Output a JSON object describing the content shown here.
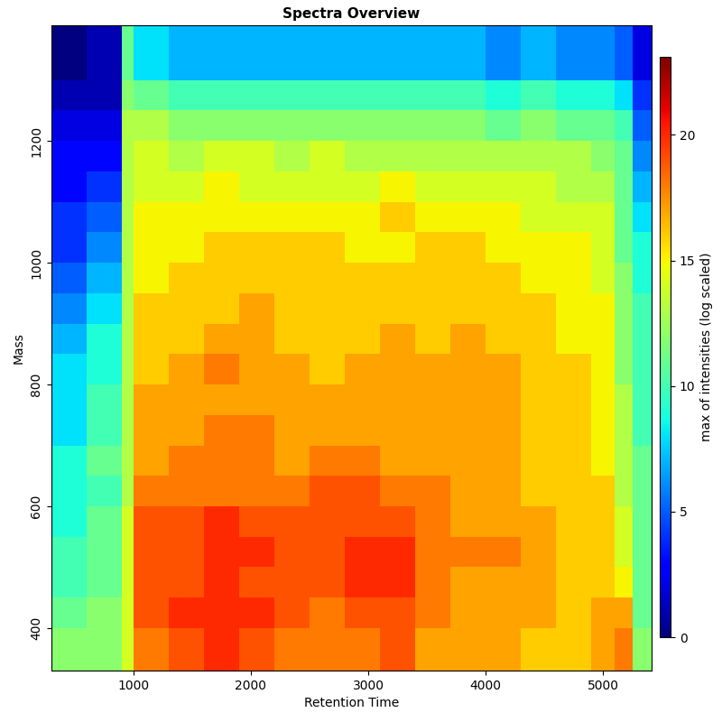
{
  "chart_data": {
    "type": "heatmap",
    "title": "Spectra Overview",
    "x_label": "Retention Time",
    "y_label": "Mass",
    "xlim": [
      300,
      5410
    ],
    "ylim": [
      330,
      1390
    ],
    "xticks": [
      1000,
      2000,
      3000,
      4000,
      5000
    ],
    "yticks": [
      400,
      600,
      800,
      1000,
      1200
    ],
    "color": "jet",
    "colorbar_label": "max of intensities (log scaled)",
    "colorbar_range": [
      0,
      23.1
    ],
    "colorbar_ticks": [
      0,
      5,
      10,
      15,
      20
    ],
    "x_edges": [
      300,
      600,
      900,
      1000,
      1300,
      1600,
      1900,
      2200,
      2500,
      2800,
      3100,
      3400,
      3700,
      4000,
      4300,
      4600,
      4900,
      5100,
      5250,
      5410
    ],
    "y_edges": [
      330,
      400,
      450,
      500,
      550,
      600,
      650,
      700,
      750,
      800,
      850,
      900,
      950,
      1000,
      1050,
      1100,
      1150,
      1200,
      1250,
      1300,
      1390
    ],
    "cells": [
      [
        12,
        12,
        14,
        18,
        19,
        20,
        19,
        18,
        18,
        18,
        19,
        17,
        17,
        17,
        16,
        16,
        17,
        18,
        12
      ],
      [
        11,
        12,
        14,
        19,
        20,
        20,
        20,
        19,
        18,
        19,
        19,
        18,
        17,
        17,
        17,
        16,
        17,
        17,
        11
      ],
      [
        10,
        11,
        14,
        19,
        19,
        20,
        19,
        19,
        19,
        20,
        20,
        18,
        17,
        17,
        17,
        16,
        16,
        15,
        11
      ],
      [
        10,
        11,
        14,
        19,
        19,
        20,
        20,
        19,
        19,
        20,
        20,
        18,
        18,
        18,
        17,
        16,
        16,
        14,
        11
      ],
      [
        9,
        11,
        14,
        19,
        19,
        20,
        19,
        19,
        19,
        19,
        19,
        18,
        17,
        17,
        17,
        16,
        16,
        14,
        11
      ],
      [
        9,
        10,
        13,
        18,
        18,
        18,
        18,
        18,
        19,
        19,
        18,
        18,
        17,
        17,
        16,
        16,
        16,
        13,
        11
      ],
      [
        9,
        11,
        13,
        17,
        18,
        18,
        18,
        17,
        18,
        18,
        17,
        17,
        17,
        17,
        16,
        16,
        15,
        13,
        11
      ],
      [
        8,
        10,
        13,
        17,
        17,
        18,
        18,
        17,
        17,
        17,
        17,
        17,
        17,
        17,
        16,
        16,
        15,
        13,
        10
      ],
      [
        8,
        10,
        13,
        17,
        17,
        17,
        17,
        17,
        17,
        17,
        17,
        17,
        17,
        17,
        16,
        16,
        15,
        13,
        10
      ],
      [
        8,
        9,
        13,
        16,
        17,
        18,
        17,
        17,
        16,
        17,
        17,
        17,
        17,
        17,
        16,
        16,
        15,
        12,
        10
      ],
      [
        7,
        9,
        13,
        16,
        16,
        17,
        17,
        16,
        16,
        16,
        17,
        16,
        17,
        16,
        16,
        15,
        15,
        12,
        10
      ],
      [
        6,
        8,
        13,
        16,
        16,
        16,
        17,
        16,
        16,
        16,
        16,
        16,
        16,
        16,
        16,
        15,
        15,
        12,
        10
      ],
      [
        5,
        7,
        13,
        15,
        16,
        16,
        16,
        16,
        16,
        16,
        16,
        16,
        16,
        16,
        15,
        15,
        14,
        12,
        9
      ],
      [
        4,
        6,
        13,
        15,
        15,
        16,
        16,
        16,
        16,
        15,
        15,
        16,
        16,
        15,
        15,
        15,
        14,
        11,
        9
      ],
      [
        4,
        5,
        13,
        15,
        15,
        15,
        15,
        15,
        15,
        15,
        16,
        15,
        15,
        15,
        14,
        14,
        14,
        11,
        8
      ],
      [
        3,
        4,
        13,
        14,
        14,
        15,
        14,
        14,
        14,
        14,
        15,
        14,
        14,
        14,
        14,
        13,
        13,
        11,
        7
      ],
      [
        3,
        3,
        13,
        14,
        13,
        14,
        14,
        13,
        14,
        13,
        13,
        13,
        13,
        13,
        13,
        13,
        12,
        11,
        6
      ],
      [
        2,
        2,
        13,
        13,
        12,
        12,
        12,
        12,
        12,
        12,
        12,
        12,
        12,
        11,
        12,
        11,
        11,
        10,
        5
      ],
      [
        1,
        1,
        12,
        11,
        10,
        10,
        10,
        10,
        10,
        10,
        10,
        10,
        10,
        9,
        10,
        9,
        9,
        8,
        4
      ],
      [
        0,
        1,
        11,
        8,
        7,
        7,
        7,
        7,
        7,
        7,
        7,
        7,
        7,
        6,
        7,
        6,
        6,
        5,
        2
      ]
    ]
  }
}
